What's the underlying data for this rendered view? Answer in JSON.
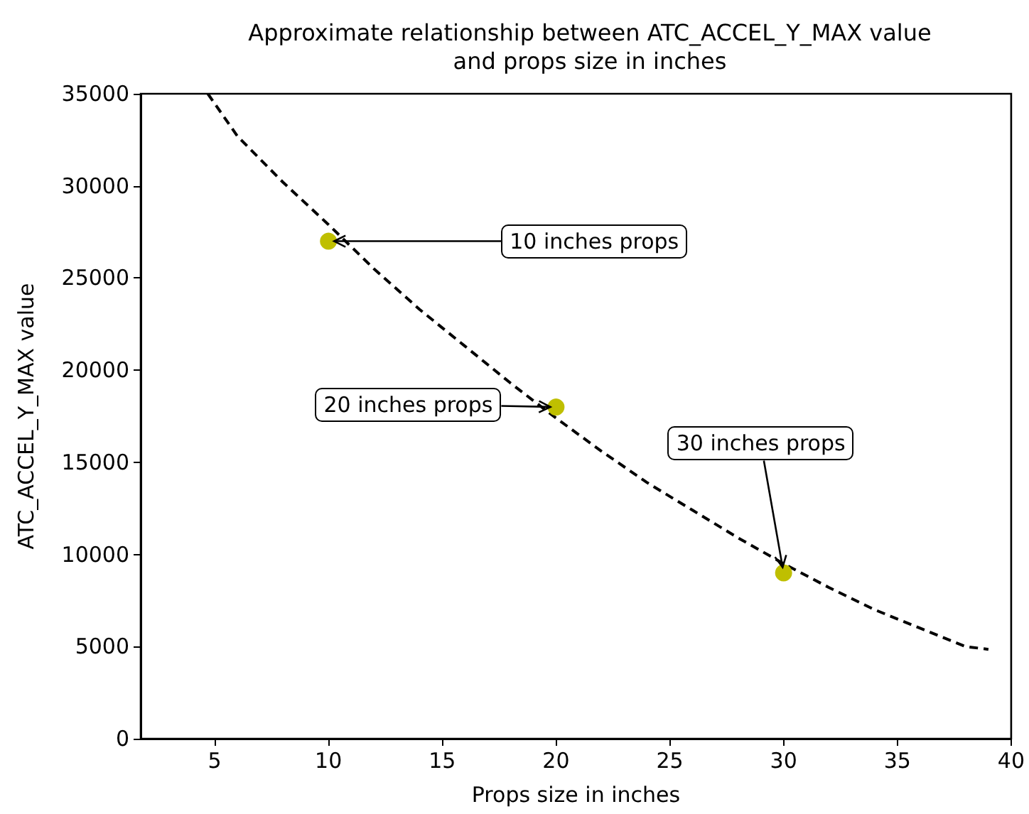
{
  "chart_data": {
    "type": "scatter",
    "title": "Approximate relationship between ATC_ACCEL_Y_MAX value\nand props size in inches",
    "xlabel": "Props size in inches",
    "ylabel": "ATC_ACCEL_Y_MAX value",
    "xlim": [
      1.75,
      40
    ],
    "xticks": [
      5,
      10,
      15,
      20,
      25,
      30,
      35,
      40
    ],
    "ylim": [
      0,
      35000
    ],
    "yticks": [
      0,
      5000,
      10000,
      15000,
      20000,
      25000,
      30000,
      35000
    ],
    "grid": false,
    "series": [
      {
        "type": "line",
        "color": "#000000",
        "line_style": "dashed",
        "marker": "none",
        "x": [
          4.7,
          6,
          8,
          10,
          12,
          14,
          16,
          18,
          20,
          22,
          24,
          26,
          28,
          30,
          32,
          34,
          36,
          38,
          39
        ],
        "values": [
          35000,
          32700,
          30200,
          27900,
          25500,
          23300,
          21300,
          19300,
          17400,
          15600,
          13900,
          12400,
          10900,
          9500,
          8200,
          7000,
          6000,
          5000,
          4850
        ]
      },
      {
        "color": "#bfbf00",
        "marker": "circle",
        "x": [
          10,
          20,
          30
        ],
        "values": [
          27000,
          18000,
          9000
        ]
      }
    ],
    "annotations": [
      {
        "text": "10 inches props",
        "x": 10,
        "y": 27000
      },
      {
        "text": "20 inches props",
        "x": 20,
        "y": 18000
      },
      {
        "text": "30 inches props",
        "x": 30,
        "y": 9000
      }
    ]
  }
}
